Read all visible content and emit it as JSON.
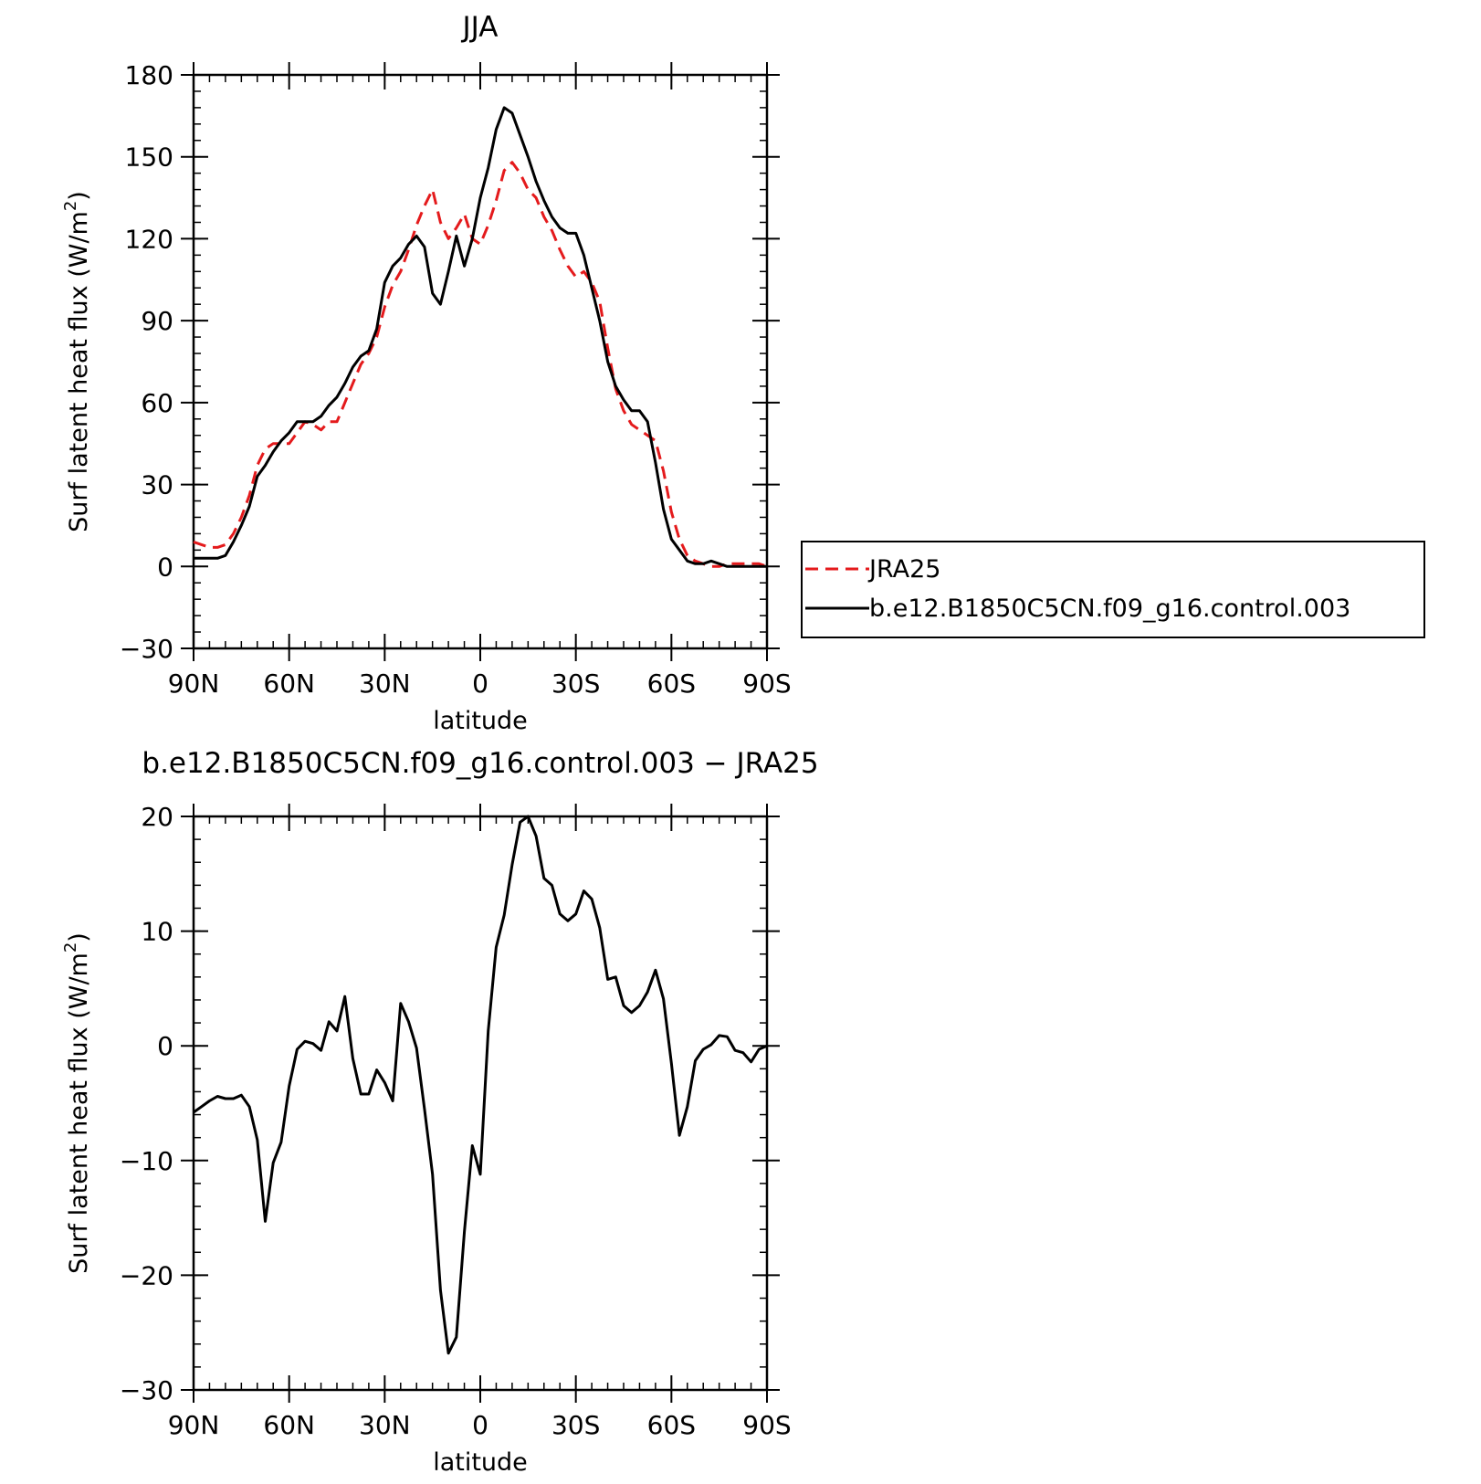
{
  "chart_data": [
    {
      "type": "line",
      "title": "JJA",
      "xlabel": "latitude",
      "ylabel": "Surf latent heat flux (W/m",
      "ylabel_sup": "2",
      "ylabel_close": ")",
      "xlim": [
        90,
        -90
      ],
      "ylim": [
        -30,
        180
      ],
      "xticks": [
        {
          "value": 90,
          "label": "90N"
        },
        {
          "value": 60,
          "label": "60N"
        },
        {
          "value": 30,
          "label": "30N"
        },
        {
          "value": 0,
          "label": "0"
        },
        {
          "value": -30,
          "label": "30S"
        },
        {
          "value": -60,
          "label": "60S"
        },
        {
          "value": -90,
          "label": "90S"
        }
      ],
      "yticks": [
        {
          "value": 180,
          "label": "180"
        },
        {
          "value": 150,
          "label": "150"
        },
        {
          "value": 120,
          "label": "120"
        },
        {
          "value": 90,
          "label": "90"
        },
        {
          "value": 60,
          "label": "60"
        },
        {
          "value": 30,
          "label": "30"
        },
        {
          "value": 0,
          "label": "0"
        },
        {
          "value": -30,
          "label": "−30"
        }
      ],
      "legend_position": "right",
      "series": [
        {
          "name": "JRA25",
          "color": "#e41a1c",
          "style": "dashed",
          "x": [
            90,
            87.5,
            85,
            82.5,
            80,
            77.5,
            75,
            72.5,
            70,
            67.5,
            65,
            62.5,
            60,
            57.5,
            55,
            52.5,
            50,
            47.5,
            45,
            42.5,
            40,
            37.5,
            35,
            32.5,
            30,
            27.5,
            25,
            22.5,
            20,
            17.5,
            15,
            12.5,
            10,
            7.5,
            5,
            2.5,
            0,
            -2.5,
            -5,
            -7.5,
            -10,
            -12.5,
            -15,
            -17.5,
            -20,
            -22.5,
            -25,
            -27.5,
            -30,
            -32.5,
            -35,
            -37.5,
            -40,
            -42.5,
            -45,
            -47.5,
            -50,
            -52.5,
            -55,
            -57.5,
            -60,
            -62.5,
            -65,
            -67.5,
            -70,
            -72.5,
            -75,
            -77.5,
            -80,
            -82.5,
            -85,
            -87.5,
            -90
          ],
          "y": [
            9,
            8,
            7,
            7,
            8,
            12,
            18,
            26,
            37,
            43,
            45,
            45,
            45,
            49,
            53,
            52,
            50,
            53,
            53,
            60,
            67,
            74,
            78,
            84,
            95,
            103,
            108,
            116,
            125,
            132,
            138,
            126,
            120,
            124,
            129,
            120,
            118,
            125,
            134,
            145,
            148,
            144,
            138,
            135,
            128,
            123,
            116,
            110,
            106,
            108,
            104,
            97,
            80,
            65,
            57,
            52,
            50,
            48,
            46,
            35,
            20,
            10,
            4,
            2,
            1,
            0,
            0,
            1,
            1,
            1,
            1,
            1,
            0
          ],
          "legend_label": "JRA25"
        },
        {
          "name": "b.e12.B1850C5CN.f09_g16.control.003",
          "color": "#000000",
          "style": "solid",
          "x": [
            90,
            87.5,
            85,
            82.5,
            80,
            77.5,
            75,
            72.5,
            70,
            67.5,
            65,
            62.5,
            60,
            57.5,
            55,
            52.5,
            50,
            47.5,
            45,
            42.5,
            40,
            37.5,
            35,
            32.5,
            30,
            27.5,
            25,
            22.5,
            20,
            17.5,
            15,
            12.5,
            10,
            7.5,
            5,
            2.5,
            0,
            -2.5,
            -5,
            -7.5,
            -10,
            -12.5,
            -15,
            -17.5,
            -20,
            -22.5,
            -25,
            -27.5,
            -30,
            -32.5,
            -35,
            -37.5,
            -40,
            -42.5,
            -45,
            -47.5,
            -50,
            -52.5,
            -55,
            -57.5,
            -60,
            -62.5,
            -65,
            -67.5,
            -70,
            -72.5,
            -75,
            -77.5,
            -80,
            -82.5,
            -85,
            -87.5,
            -90
          ],
          "y": [
            3,
            3,
            3,
            3,
            4,
            9,
            15,
            22,
            33,
            37,
            42,
            46,
            49,
            53,
            53,
            53,
            55,
            59,
            62,
            67,
            73,
            77,
            79,
            87,
            104,
            110,
            113,
            118,
            121,
            117,
            100,
            96,
            108,
            121,
            110,
            120,
            135,
            146,
            160,
            168,
            166,
            158,
            150,
            141,
            134,
            128,
            124,
            122,
            122,
            114,
            102,
            90,
            75,
            66,
            61,
            57,
            57,
            53,
            38,
            21,
            10,
            6,
            2,
            1,
            1,
            2,
            1,
            0,
            0,
            0,
            0,
            0,
            0
          ],
          "legend_label": "b.e12.B1850C5CN.f09_g16.control.003"
        }
      ]
    },
    {
      "type": "line",
      "title": "b.e12.B1850C5CN.f09_g16.control.003 − JRA25",
      "xlabel": "latitude",
      "ylabel": "Surf latent heat flux (W/m",
      "ylabel_sup": "2",
      "ylabel_close": ")",
      "xlim": [
        90,
        -90
      ],
      "ylim": [
        -30,
        20
      ],
      "xticks": [
        {
          "value": 90,
          "label": "90N"
        },
        {
          "value": 60,
          "label": "60N"
        },
        {
          "value": 30,
          "label": "30N"
        },
        {
          "value": 0,
          "label": "0"
        },
        {
          "value": -30,
          "label": "30S"
        },
        {
          "value": -60,
          "label": "60S"
        },
        {
          "value": -90,
          "label": "90S"
        }
      ],
      "yticks": [
        {
          "value": 20,
          "label": "20"
        },
        {
          "value": 10,
          "label": "10"
        },
        {
          "value": 0,
          "label": "0"
        },
        {
          "value": -10,
          "label": "−10"
        },
        {
          "value": -20,
          "label": "−20"
        },
        {
          "value": -30,
          "label": "−30"
        }
      ],
      "series": [
        {
          "color": "#000000",
          "style": "solid",
          "x": [
            90,
            87.5,
            85,
            82.5,
            80,
            77.5,
            75,
            72.5,
            70,
            67.5,
            65,
            62.5,
            60,
            57.5,
            55,
            52.5,
            50,
            47.5,
            45,
            42.5,
            40,
            37.5,
            35,
            32.5,
            30,
            27.5,
            25,
            22.5,
            20,
            17.5,
            15,
            12.5,
            10,
            7.5,
            5,
            2.5,
            0,
            -2.5,
            -5,
            -7.5,
            -10,
            -12.5,
            -15,
            -17.5,
            -20,
            -22.5,
            -25,
            -27.5,
            -30,
            -32.5,
            -35,
            -37.5,
            -40,
            -42.5,
            -45,
            -47.5,
            -50,
            -52.5,
            -55,
            -57.5,
            -60,
            -62.5,
            -65,
            -67.5,
            -70,
            -72.5,
            -75,
            -77.5,
            -80,
            -82.5,
            -85,
            -87.5,
            -90
          ],
          "y": [
            -5.8,
            -5.3,
            -4.8,
            -4.4,
            -4.6,
            -4.6,
            -4.3,
            -5.3,
            -8.2,
            -15.3,
            -10.2,
            -8.4,
            -3.5,
            -0.3,
            0.4,
            0.2,
            -0.4,
            2.1,
            1.3,
            4.3,
            -1.1,
            -4.2,
            -4.2,
            -2.1,
            -3.2,
            -4.8,
            3.7,
            2.1,
            -0.2,
            -5.5,
            -11.2,
            -21.3,
            -26.8,
            -25.4,
            -16.2,
            -8.7,
            -11.2,
            1.3,
            8.6,
            11.4,
            15.8,
            19.5,
            20.0,
            18.3,
            14.6,
            14.0,
            11.5,
            10.9,
            11.5,
            13.5,
            12.8,
            10.3,
            5.8,
            6.0,
            3.5,
            2.9,
            3.5,
            4.7,
            6.6,
            4.1,
            -1.5,
            -7.8,
            -5.3,
            -1.3,
            -0.3,
            0.1,
            0.9,
            0.8,
            -0.4,
            -0.6,
            -1.4,
            -0.3,
            0.0
          ]
        }
      ]
    }
  ]
}
